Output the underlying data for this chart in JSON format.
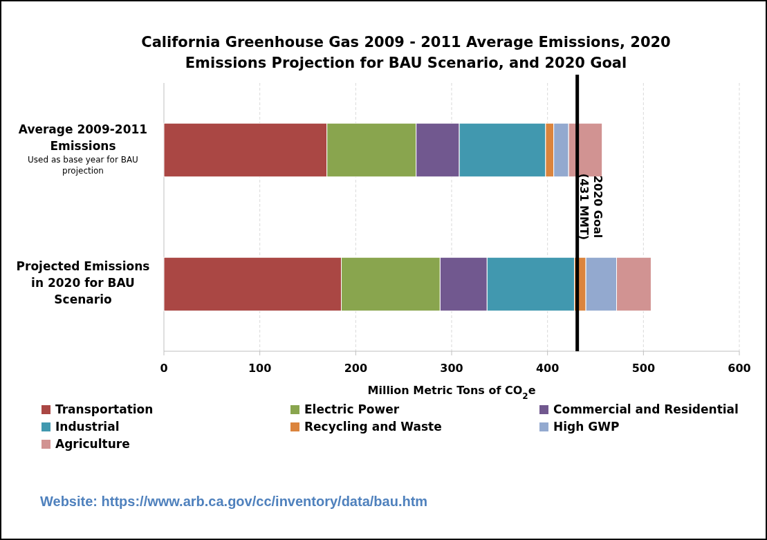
{
  "chart_data": {
    "type": "bar",
    "orientation": "horizontal",
    "stacked": true,
    "title": "California Greenhouse Gas 2009 - 2011 Average Emissions, 2020\nEmissions Projection for BAU Scenario, and 2020 Goal",
    "xlabel": "Million Metric Tons of CO$_{2}$e",
    "categories": [
      "Average 2009-2011 Emissions",
      "Projected Emissions in 2020 for BAU Scenario"
    ],
    "series": [
      {
        "name": "Transportation",
        "color": "#aa4744",
        "values": [
          170,
          185
        ]
      },
      {
        "name": "Electric Power",
        "color": "#89a54e",
        "values": [
          93,
          103
        ]
      },
      {
        "name": "Commercial and Residential",
        "color": "#71588f",
        "values": [
          45,
          49
        ]
      },
      {
        "name": "Industrial",
        "color": "#4198af",
        "values": [
          90,
          91
        ]
      },
      {
        "name": "Recycling and Waste",
        "color": "#db843d",
        "values": [
          8.5,
          12
        ]
      },
      {
        "name": "High GWP",
        "color": "#93a9cf",
        "values": [
          15.5,
          32
        ]
      },
      {
        "name": "Agriculture",
        "color": "#d19392",
        "values": [
          35,
          36
        ]
      }
    ],
    "xlim": [
      0,
      600
    ],
    "xticks": [
      0,
      100,
      200,
      300,
      400,
      500,
      600
    ],
    "grid": "x",
    "legend": "bottom",
    "ref_lines": [
      {
        "axis": "x",
        "value": 431,
        "label": "2020 Goal\n(431 MMT)",
        "color": "#000000"
      }
    ],
    "annotations": [
      "Used as base year for BAU projection",
      "Website: https://www.arb.ca.gov/cc/inventory/data/bau.htm"
    ]
  }
}
